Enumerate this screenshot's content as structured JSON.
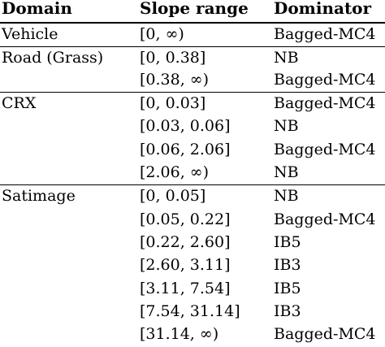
{
  "header": {
    "domain": "Domain",
    "slope_range": "Slope range",
    "dominator": "Dominator"
  },
  "rows": [
    {
      "domain": "Vehicle",
      "range": "[0, ∞)",
      "dominator": "Bagged-MC4"
    },
    {
      "domain": "Road (Grass)",
      "range": "[0, 0.38]",
      "dominator": "NB"
    },
    {
      "domain": "",
      "range": "[0.38, ∞)",
      "dominator": "Bagged-MC4"
    },
    {
      "domain": "CRX",
      "range": "[0, 0.03]",
      "dominator": "Bagged-MC4"
    },
    {
      "domain": "",
      "range": "[0.03, 0.06]",
      "dominator": "NB"
    },
    {
      "domain": "",
      "range": "[0.06, 2.06]",
      "dominator": "Bagged-MC4"
    },
    {
      "domain": "",
      "range": "[2.06, ∞)",
      "dominator": "NB"
    },
    {
      "domain": "Satimage",
      "range": "[0, 0.05]",
      "dominator": "NB"
    },
    {
      "domain": "",
      "range": "[0.05, 0.22]",
      "dominator": "Bagged-MC4"
    },
    {
      "domain": "",
      "range": "[0.22, 2.60]",
      "dominator": "IB5"
    },
    {
      "domain": "",
      "range": "[2.60, 3.11]",
      "dominator": "IB3"
    },
    {
      "domain": "",
      "range": "[3.11, 7.54]",
      "dominator": "IB5"
    },
    {
      "domain": "",
      "range": "[7.54, 31.14]",
      "dominator": "IB3"
    },
    {
      "domain": "",
      "range": "[31.14, ∞)",
      "dominator": "Bagged-MC4"
    }
  ]
}
